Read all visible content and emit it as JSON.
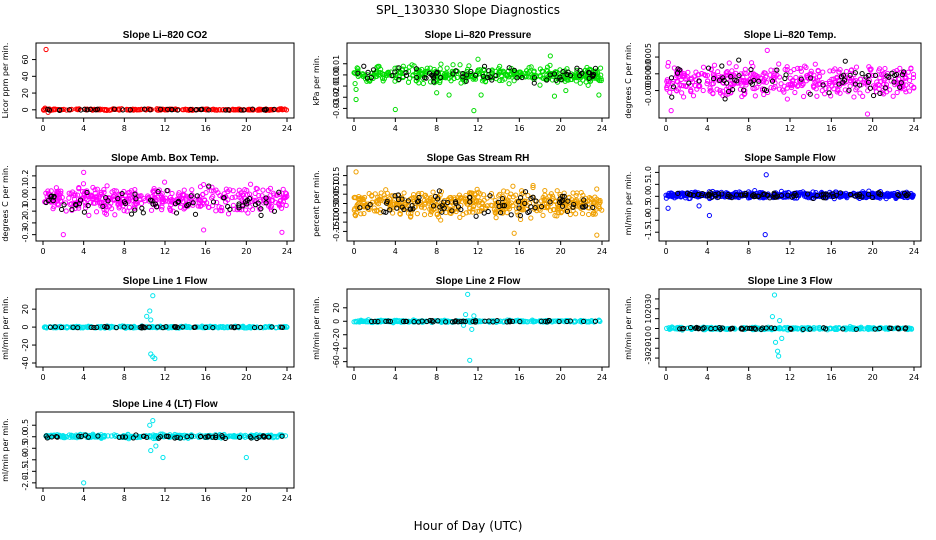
{
  "figure": {
    "title": "SPL_130330  Slope Diagnostics",
    "xlabel": "Hour of Day (UTC)"
  },
  "chart_data": [
    {
      "type": "scatter",
      "title": "Slope Li–820 CO2",
      "ylabel": "Licor ppm per min.",
      "color": "#ff0000",
      "xlim": [
        0,
        24
      ],
      "ylim": [
        -5,
        75
      ],
      "xticks": [
        0,
        4,
        8,
        12,
        16,
        20,
        24
      ],
      "yticks": [
        0,
        20,
        40,
        60
      ],
      "ytick_labels": [
        "0",
        "20",
        "40",
        "60"
      ],
      "outliers": [
        [
          0.3,
          72
        ],
        [
          0.5,
          -3
        ],
        [
          0.2,
          2
        ]
      ],
      "series": {
        "center": 0.3,
        "spread": 0.8,
        "count": 220,
        "black_center": 0.3,
        "black_spread": 0.8
      }
    },
    {
      "type": "scatter",
      "title": "Slope Li–820 Pressure",
      "ylabel": "kPa per min.",
      "color": "#00dd00",
      "xlim": [
        0,
        24
      ],
      "ylim": [
        -0.035,
        0.025
      ],
      "xticks": [
        0,
        4,
        8,
        12,
        16,
        20,
        24
      ],
      "yticks": [
        -0.03,
        -0.02,
        -0.01,
        0.0,
        0.01
      ],
      "ytick_labels": [
        "-0.03",
        "-0.02",
        "-0.01",
        "0.00",
        "0.01"
      ],
      "outliers": [
        [
          0.2,
          -0.022
        ],
        [
          0.2,
          -0.013
        ],
        [
          4,
          -0.031
        ],
        [
          8,
          -0.016
        ],
        [
          9.2,
          -0.018
        ],
        [
          11.6,
          -0.032
        ],
        [
          12,
          0.014
        ],
        [
          12.3,
          -0.018
        ],
        [
          19,
          0.017
        ],
        [
          19.4,
          -0.019
        ],
        [
          20.5,
          -0.014
        ],
        [
          23.7,
          -0.018
        ]
      ],
      "series": {
        "center": 0.0,
        "spread": 0.007,
        "count": 400,
        "black_center": 0.0,
        "black_spread": 0.006
      }
    },
    {
      "type": "scatter",
      "title": "Slope Li–820 Temp.",
      "ylabel": "degrees C per min.",
      "color": "#ff00ff",
      "xlim": [
        0,
        24
      ],
      "ylim": [
        -0.0012,
        0.0008
      ],
      "xticks": [
        0,
        4,
        8,
        12,
        16,
        20,
        24
      ],
      "yticks": [
        -0.0005,
        0.0,
        0.0005
      ],
      "ytick_labels": [
        "-0.0005",
        "0.0000",
        "0.0005"
      ],
      "outliers": [
        [
          0.5,
          -0.0011
        ],
        [
          19.5,
          -0.0012
        ],
        [
          9.8,
          0.0007
        ]
      ],
      "series": {
        "center": -0.0002,
        "spread": 0.00045,
        "count": 420,
        "black_center": -0.0002,
        "black_spread": 0.0004
      }
    },
    {
      "type": "scatter",
      "title": "Slope Amb. Box Temp.",
      "ylabel": "degrees C per min.",
      "color": "#ff00ff",
      "xlim": [
        0,
        24
      ],
      "ylim": [
        -0.32,
        0.25
      ],
      "xticks": [
        0,
        4,
        8,
        12,
        16,
        20,
        24
      ],
      "yticks": [
        -0.3,
        -0.2,
        -0.1,
        0.0,
        0.1,
        0.2
      ],
      "ytick_labels": [
        "-0.3",
        "-0.2",
        "-0.1",
        "0.0",
        "0.1",
        "0.2"
      ],
      "outliers": [
        [
          4,
          0.23
        ],
        [
          2,
          -0.3
        ],
        [
          23.5,
          -0.28
        ],
        [
          15.8,
          -0.26
        ]
      ],
      "series": {
        "center": 0.0,
        "spread": 0.1,
        "count": 420,
        "black_center": -0.02,
        "black_spread": 0.09
      }
    },
    {
      "type": "scatter",
      "title": "Slope Gas Stream RH",
      "ylabel": "percent per min.",
      "color": "#f0a000",
      "xlim": [
        0,
        24
      ],
      "ylim": [
        -0.18,
        0.18
      ],
      "xticks": [
        0,
        4,
        8,
        12,
        16,
        20,
        24
      ],
      "yticks": [
        -0.15,
        -0.1,
        -0.05,
        0.0,
        0.05,
        0.1,
        0.15
      ],
      "ytick_labels": [
        "-0.15",
        "-0.10",
        "-0.05",
        "0.00",
        "0.05",
        "0.10",
        "0.15"
      ],
      "outliers": [
        [
          0.2,
          0.17
        ],
        [
          23.5,
          -0.17
        ],
        [
          15.5,
          -0.16
        ]
      ],
      "series": {
        "center": 0.0,
        "spread": 0.065,
        "count": 500,
        "black_center": 0.0,
        "black_spread": 0.06
      }
    },
    {
      "type": "scatter",
      "title": "Slope Sample Flow",
      "ylabel": "ml/min per min.",
      "color": "#0000ff",
      "xlim": [
        0,
        24
      ],
      "ylim": [
        -1.7,
        1.1
      ],
      "xticks": [
        0,
        4,
        8,
        12,
        16,
        20,
        24
      ],
      "yticks": [
        -1.5,
        -1.0,
        -0.5,
        0.0,
        0.5,
        1.0
      ],
      "ytick_labels": [
        "-1.5",
        "-1.0",
        "-0.5",
        "0.0",
        "0.5",
        "1.0"
      ],
      "outliers": [
        [
          9.6,
          -1.6
        ],
        [
          4.2,
          -0.8
        ],
        [
          9.7,
          0.9
        ],
        [
          3.2,
          -0.4
        ],
        [
          0.2,
          -0.5
        ]
      ],
      "series": {
        "center": 0.05,
        "spread": 0.12,
        "count": 500,
        "black_center": 0.05,
        "black_spread": 0.1
      }
    },
    {
      "type": "scatter",
      "title": "Slope Line 1 Flow",
      "ylabel": "ml/min per min.",
      "color": "#00e5ee",
      "xlim": [
        0,
        24
      ],
      "ylim": [
        -40,
        38
      ],
      "xticks": [
        0,
        4,
        8,
        12,
        16,
        20,
        24
      ],
      "yticks": [
        -40,
        -20,
        0,
        20
      ],
      "ytick_labels": [
        "-40",
        "-20",
        "0",
        "20"
      ],
      "outliers": [
        [
          10.8,
          35
        ],
        [
          10.5,
          18
        ],
        [
          10.2,
          12
        ],
        [
          10.6,
          8
        ],
        [
          10.6,
          -30
        ],
        [
          10.8,
          -33
        ],
        [
          11,
          -35
        ]
      ],
      "series": {
        "center": 0,
        "spread": 1.0,
        "count": 260,
        "black_center": 0,
        "black_spread": 0.8
      }
    },
    {
      "type": "scatter",
      "title": "Slope Line 2 Flow",
      "ylabel": "ml/min per min.",
      "color": "#00e5ee",
      "xlim": [
        0,
        24
      ],
      "ylim": [
        -62,
        42
      ],
      "xticks": [
        0,
        4,
        8,
        12,
        16,
        20,
        24
      ],
      "yticks": [
        -60,
        -40,
        -20,
        0,
        20
      ],
      "ytick_labels": [
        "-60",
        "-40",
        "-20",
        "0",
        "20"
      ],
      "outliers": [
        [
          11,
          40
        ],
        [
          11.2,
          -58
        ],
        [
          10.8,
          10
        ],
        [
          11.4,
          -12
        ],
        [
          10.6,
          -6
        ],
        [
          11.6,
          8
        ]
      ],
      "series": {
        "center": 0,
        "spread": 1.5,
        "count": 280,
        "black_center": 0,
        "black_spread": 1.2
      }
    },
    {
      "type": "scatter",
      "title": "Slope Line 3 Flow",
      "ylabel": "ml/min per min.",
      "color": "#00e5ee",
      "xlim": [
        0,
        24
      ],
      "ylim": [
        -35,
        36
      ],
      "xticks": [
        0,
        4,
        8,
        12,
        16,
        20,
        24
      ],
      "yticks": [
        -30,
        -20,
        -10,
        0,
        10,
        20,
        30
      ],
      "ytick_labels": [
        "-30",
        "-20",
        "-10",
        "0",
        "10",
        "20",
        "30"
      ],
      "outliers": [
        [
          10.5,
          34
        ],
        [
          10.6,
          -14
        ],
        [
          10.8,
          -23
        ],
        [
          10.9,
          -28
        ],
        [
          10.3,
          12
        ],
        [
          11,
          8
        ],
        [
          11.2,
          -10
        ]
      ],
      "series": {
        "center": 0,
        "spread": 1.2,
        "count": 280,
        "black_center": 0,
        "black_spread": 1.0
      }
    },
    {
      "type": "scatter",
      "title": "Slope Line 4 (LT) Flow",
      "ylabel": "ml/min per min.",
      "color": "#00e5ee",
      "xlim": [
        0,
        24
      ],
      "ylim": [
        -2.05,
        0.9
      ],
      "xticks": [
        0,
        4,
        8,
        12,
        16,
        20,
        24
      ],
      "yticks": [
        -2.0,
        -1.5,
        -1.0,
        -0.5,
        0.0,
        0.5
      ],
      "ytick_labels": [
        "-2.0",
        "-1.5",
        "-1.0",
        "-0.5",
        "0.0",
        "0.5"
      ],
      "outliers": [
        [
          4,
          -2.0
        ],
        [
          20,
          -0.9
        ],
        [
          11.8,
          -0.9
        ],
        [
          10.6,
          -0.6
        ],
        [
          10.8,
          0.7
        ],
        [
          10.5,
          0.5
        ],
        [
          11.1,
          -0.4
        ]
      ],
      "series": {
        "center": 0.02,
        "spread": 0.08,
        "count": 300,
        "black_center": 0.0,
        "black_spread": 0.06
      }
    }
  ]
}
